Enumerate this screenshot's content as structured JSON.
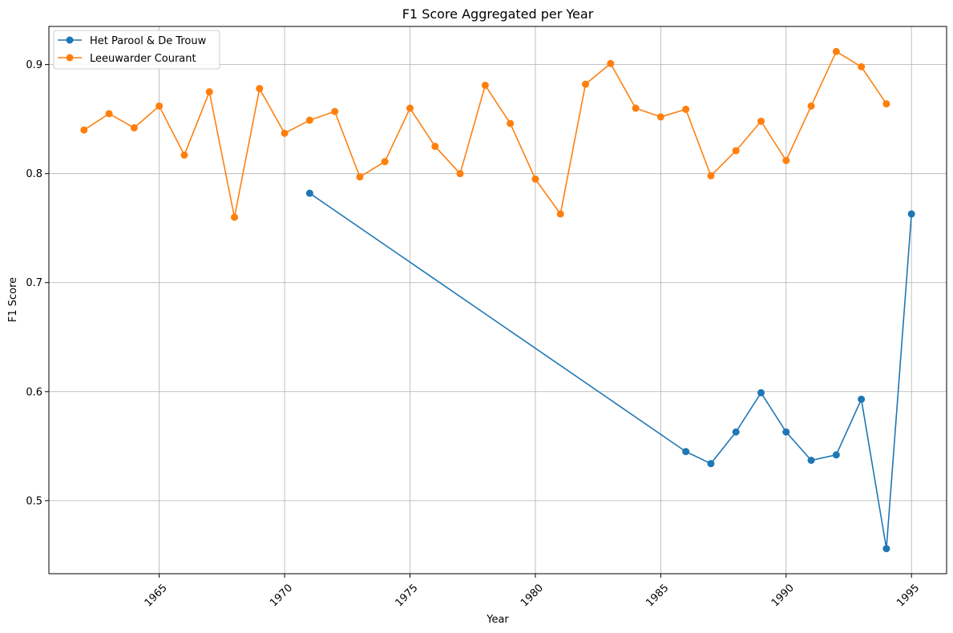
{
  "chart_data": {
    "type": "line",
    "title": "F1 Score Aggregated per Year",
    "xlabel": "Year",
    "ylabel": "F1 Score",
    "xlim": [
      1960.6,
      1996.4
    ],
    "ylim": [
      0.433,
      0.935
    ],
    "xticks": [
      1965,
      1970,
      1975,
      1980,
      1985,
      1990,
      1995
    ],
    "yticks": [
      0.5,
      0.6,
      0.7,
      0.8,
      0.9
    ],
    "ytick_labels": [
      "0.5",
      "0.6",
      "0.7",
      "0.8",
      "0.9"
    ],
    "xtick_rotation": 45,
    "grid": true,
    "legend_position": "top-left",
    "series": [
      {
        "name": "Het Parool & De Trouw",
        "color": "#1f77b4",
        "marker": "circle",
        "x": [
          1971,
          1986,
          1987,
          1988,
          1989,
          1990,
          1991,
          1992,
          1993,
          1994,
          1995
        ],
        "y": [
          0.782,
          0.545,
          0.534,
          0.563,
          0.599,
          0.563,
          0.537,
          0.542,
          0.593,
          0.456,
          0.763
        ]
      },
      {
        "name": "Leeuwarder Courant",
        "color": "#ff7f0e",
        "marker": "circle",
        "x": [
          1962,
          1963,
          1964,
          1965,
          1966,
          1967,
          1968,
          1969,
          1970,
          1971,
          1972,
          1973,
          1974,
          1975,
          1976,
          1977,
          1978,
          1979,
          1980,
          1981,
          1982,
          1983,
          1984,
          1985,
          1986,
          1987,
          1988,
          1989,
          1990,
          1991,
          1992,
          1993,
          1994
        ],
        "y": [
          0.84,
          0.855,
          0.842,
          0.862,
          0.817,
          0.875,
          0.76,
          0.878,
          0.837,
          0.849,
          0.857,
          0.797,
          0.811,
          0.86,
          0.825,
          0.8,
          0.881,
          0.846,
          0.795,
          0.763,
          0.882,
          0.901,
          0.86,
          0.852,
          0.859,
          0.798,
          0.821,
          0.848,
          0.812,
          0.862,
          0.912,
          0.898,
          0.864
        ]
      }
    ]
  }
}
